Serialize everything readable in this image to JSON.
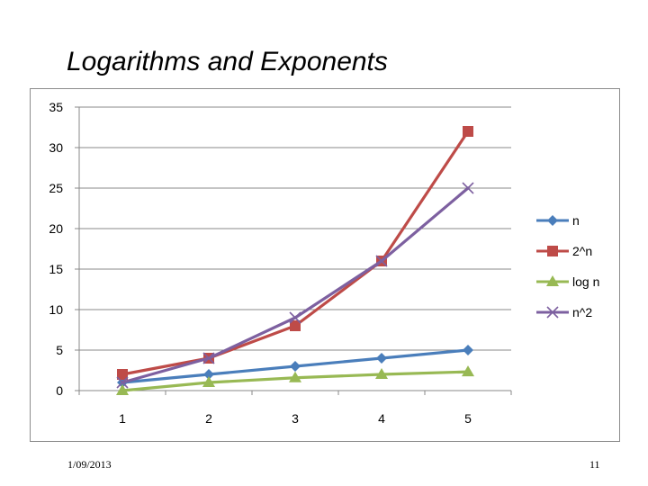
{
  "slide": {
    "title": "Logarithms and Exponents",
    "date": "1/09/2013",
    "page_number": "11"
  },
  "chart_data": {
    "type": "line",
    "categories": [
      "1",
      "2",
      "3",
      "4",
      "5"
    ],
    "ylim": [
      0,
      35
    ],
    "yticks": [
      0,
      5,
      10,
      15,
      20,
      25,
      30,
      35
    ],
    "grid": true,
    "legend_position": "right",
    "series": [
      {
        "name": "n",
        "values": [
          1,
          2,
          3,
          4,
          5
        ],
        "color": "#4a7ebb",
        "marker": "diamond"
      },
      {
        "name": "2^n",
        "values": [
          2,
          4,
          8,
          16,
          32
        ],
        "color": "#be4b48",
        "marker": "square"
      },
      {
        "name": "log n",
        "values": [
          0,
          1,
          1.585,
          2,
          2.322
        ],
        "color": "#98b954",
        "marker": "triangle"
      },
      {
        "name": "n^2",
        "values": [
          1,
          4,
          9,
          16,
          25
        ],
        "color": "#7d60a0",
        "marker": "x"
      }
    ]
  }
}
